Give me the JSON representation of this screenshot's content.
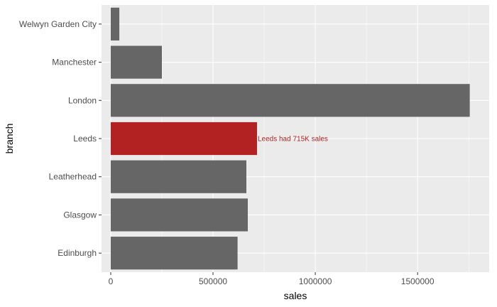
{
  "chart_data": {
    "type": "bar",
    "orientation": "horizontal",
    "categories": [
      "Welwyn Garden City",
      "Manchester",
      "London",
      "Leeds",
      "Leatherhead",
      "Glasgow",
      "Edinburgh"
    ],
    "values": [
      42000,
      250000,
      1755000,
      715000,
      663000,
      670000,
      620000
    ],
    "highlight": {
      "category": "Leeds",
      "color": "#b22222"
    },
    "bar_color": "#666666",
    "annotation": {
      "text": "Leeds had 715K sales",
      "category": "Leeds",
      "x": 715000,
      "color": "#b22222"
    },
    "xlabel": "sales",
    "ylabel": "branch",
    "xlim": [
      -45000,
      1850000
    ],
    "xticks": [
      0,
      500000,
      1000000,
      1500000
    ],
    "xtick_labels": [
      "0",
      "500000",
      "1000000",
      "1500000"
    ],
    "grid": true,
    "panel_background": "#ebebeb",
    "grid_color": "#ffffff"
  }
}
